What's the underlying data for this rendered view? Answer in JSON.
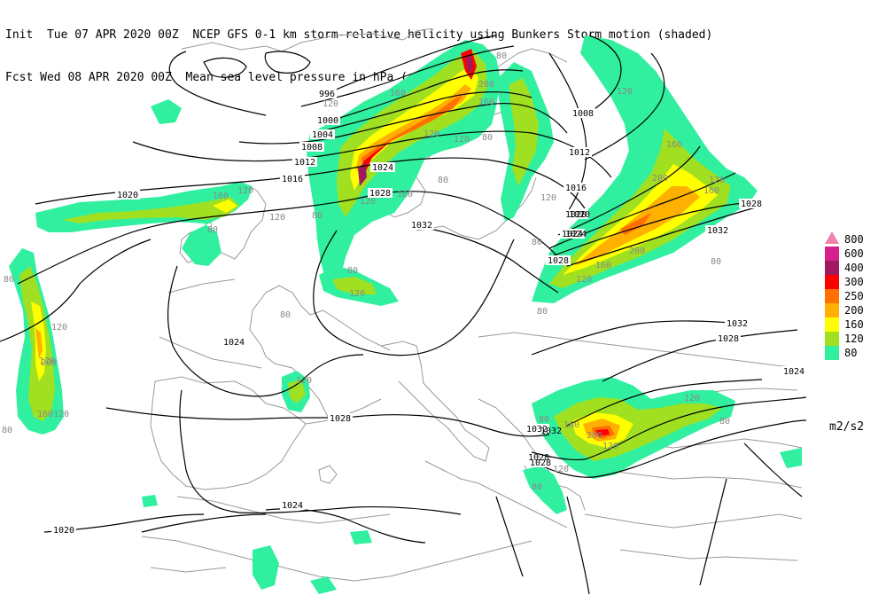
{
  "header": {
    "line1": "Init  Tue 07 APR 2020 00Z  NCEP GFS 0-1 km storm-relative helicity using Bunkers Storm motion (shaded)",
    "line2": "Fcst Wed 08 APR 2020 00Z  Mean sea level pressure in hPa (contours)"
  },
  "legend": {
    "items": [
      {
        "label": "800",
        "color": "#f060c0"
      },
      {
        "label": "600",
        "color": "#d8208c"
      },
      {
        "label": "400",
        "color": "#a01860"
      },
      {
        "label": "300",
        "color": "#ff0000"
      },
      {
        "label": "250",
        "color": "#ff7000"
      },
      {
        "label": "200",
        "color": "#ffb000"
      },
      {
        "label": "160",
        "color": "#ffff00"
      },
      {
        "label": "120",
        "color": "#a0e020"
      },
      {
        "label": "80",
        "color": "#30f0a0"
      }
    ],
    "units": "m2/s2"
  },
  "pressure_labels": [
    "996",
    "1000",
    "1004",
    "1008",
    "1012",
    "1016",
    "1020",
    "1024",
    "1028",
    "1032",
    "1032",
    "1028",
    "1024",
    "1020",
    "1024",
    "1028",
    "1032",
    "1024",
    "1028",
    "1032",
    "1028",
    "1024",
    "1020",
    "1016",
    "1012",
    "1008",
    "1020",
    "1024",
    "1028",
    "1032",
    "1028"
  ],
  "helicity_labels": [
    "80",
    "120",
    "160",
    "200",
    "120",
    "160",
    "120",
    "80",
    "120",
    "160",
    "200",
    "120",
    "160",
    "80",
    "120",
    "80",
    "120",
    "200",
    "160",
    "120",
    "80",
    "80",
    "120",
    "160",
    "120",
    "80",
    "120",
    "80",
    "120",
    "160",
    "120",
    "80"
  ]
}
